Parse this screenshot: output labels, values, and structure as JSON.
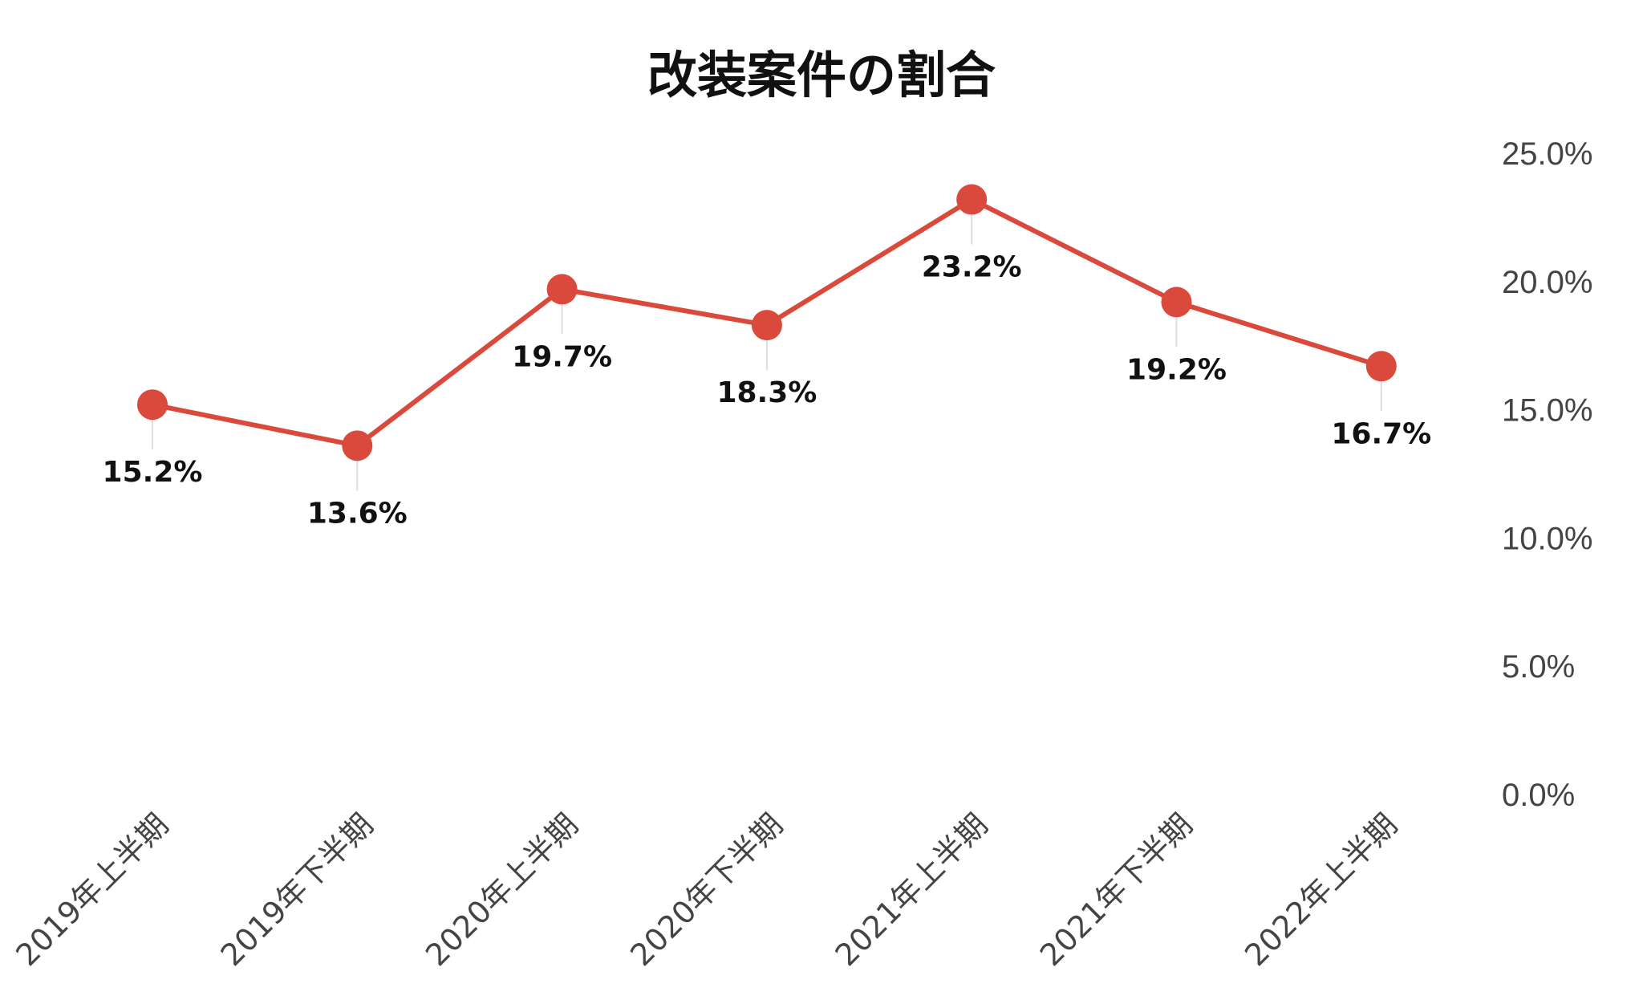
{
  "chart_data": {
    "type": "line",
    "title": "改装案件の割合",
    "categories": [
      "2019年上半期",
      "2019年下半期",
      "2020年上半期",
      "2020年下半期",
      "2021年上半期",
      "2021年下半期",
      "2022年上半期"
    ],
    "series": [
      {
        "values": [
          15.2,
          13.6,
          19.7,
          18.3,
          23.2,
          19.2,
          16.7
        ],
        "labels": [
          "15.2%",
          "13.6%",
          "19.7%",
          "18.3%",
          "23.2%",
          "19.2%",
          "16.7%"
        ],
        "color": "#d94a3c"
      }
    ],
    "y_ticks": [
      0,
      5,
      10,
      15,
      20,
      25
    ],
    "y_tick_labels": [
      "0.0%",
      "5.0%",
      "10.0%",
      "15.0%",
      "20.0%",
      "25.0%"
    ],
    "ylim": [
      0,
      25
    ],
    "y_axis_position": "right",
    "grid": false,
    "legend": "none",
    "data_labels": "below-point",
    "x_tick_rotation": "-45deg"
  }
}
